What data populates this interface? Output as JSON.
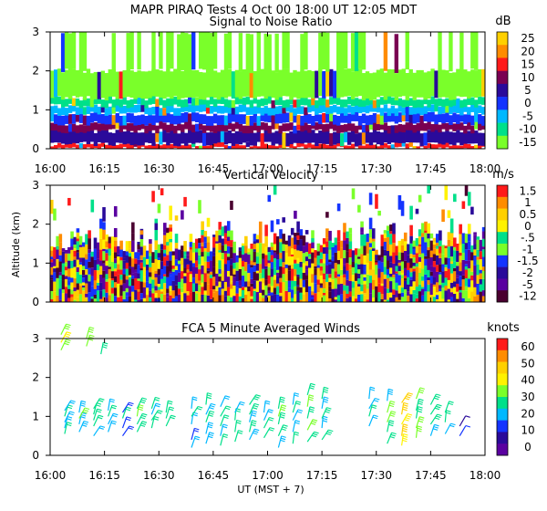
{
  "figure": {
    "title": "MAPR PIRAQ Tests   4 Oct 00   18:00 UT   12:05   MDT",
    "x_label": "UT  (MST + 7)",
    "y_label": "Altitude (km)"
  },
  "chart_data": [
    {
      "type": "heatmap",
      "title": "Signal to Noise Ratio",
      "x_ticks": [
        "16:00",
        "16:15",
        "16:30",
        "16:45",
        "17:00",
        "17:15",
        "17:30",
        "17:45",
        "18:00"
      ],
      "x_range_minutes": [
        0,
        120
      ],
      "y_ticks": [
        "0",
        "1",
        "2",
        "3"
      ],
      "ylim": [
        0,
        3
      ],
      "colorbar": {
        "unit": "dB",
        "labels": [
          "25",
          "20",
          "15",
          "10",
          "5",
          "0",
          "-5",
          "-10",
          "-15"
        ],
        "colors": [
          "#ffd000",
          "#ff8c00",
          "#ff1a1a",
          "#7a0052",
          "#2a0a9a",
          "#1434ff",
          "#00b8ff",
          "#00e08a",
          "#7aff2a"
        ]
      },
      "bands": [
        {
          "y0": 0.0,
          "y1": 0.12,
          "color": "#ff1a1a"
        },
        {
          "y0": 0.12,
          "y1": 0.45,
          "color": "#2a0a9a"
        },
        {
          "y0": 0.45,
          "y1": 0.65,
          "color": "#7a0052"
        },
        {
          "y0": 0.65,
          "y1": 0.9,
          "color": "#1434ff"
        },
        {
          "y0": 0.9,
          "y1": 1.1,
          "color": "#00b8ff"
        },
        {
          "y0": 1.1,
          "y1": 1.3,
          "color": "#00e08a"
        },
        {
          "y0": 1.3,
          "y1": 2.0,
          "color": "#7aff2a"
        },
        {
          "y0": 2.0,
          "y1": 3.0,
          "color": "#7aff2a",
          "sparse": true
        }
      ]
    },
    {
      "type": "heatmap",
      "title": "Vertical Velocity",
      "x_ticks": [
        "",
        "",
        "",
        "",
        "",
        "",
        "",
        "",
        ""
      ],
      "x_range_minutes": [
        0,
        120
      ],
      "y_ticks": [
        "0",
        "1",
        "2",
        "3"
      ],
      "ylim": [
        0,
        3
      ],
      "colorbar": {
        "unit": "m/s",
        "labels": [
          "1.5",
          "1",
          "0.5",
          "0",
          "-.5",
          "-1",
          "-1.5",
          "-2",
          "-5",
          "-12"
        ],
        "colors": [
          "#ff1a1a",
          "#ff8c00",
          "#ffd000",
          "#fff200",
          "#00e08a",
          "#7aff2a",
          "#1434ff",
          "#2a0a9a",
          "#5a00a0",
          "#4a0030"
        ]
      },
      "fill_top_km": 1.5,
      "scatter_top_km": 3.0
    },
    {
      "type": "scatter",
      "title": "FCA 5 Minute Averaged Winds",
      "x_ticks": [
        "16:00",
        "16:15",
        "16:30",
        "16:45",
        "17:00",
        "17:15",
        "17:30",
        "17:45",
        "18:00"
      ],
      "x_range_minutes": [
        0,
        120
      ],
      "y_ticks": [
        "0",
        "1",
        "2",
        "3"
      ],
      "ylim": [
        0,
        3
      ],
      "colorbar": {
        "unit": "knots",
        "labels": [
          "60",
          "50",
          "40",
          "30",
          "20",
          "10",
          "0"
        ],
        "colors": [
          "#ff1a1a",
          "#ff8c00",
          "#ffd000",
          "#fff200",
          "#7aff2a",
          "#00e08a",
          "#00b8ff",
          "#1434ff",
          "#2a0a9a",
          "#5a00a0"
        ]
      },
      "barb_groups": [
        {
          "t": 3,
          "alts": [
            2.7,
            2.9,
            3.1
          ],
          "speed": 32
        },
        {
          "t": 10,
          "alts": [
            2.8,
            3.0
          ],
          "speed": 30
        },
        {
          "t": 14,
          "alts": [
            2.6
          ],
          "speed": 30
        },
        {
          "t": 4,
          "alts": [
            0.55,
            0.7,
            0.85,
            1.0,
            1.15
          ],
          "speed": 22
        },
        {
          "t": 8,
          "alts": [
            0.6,
            0.8,
            0.95,
            1.1
          ],
          "speed": 25
        },
        {
          "t": 12,
          "alts": [
            0.5,
            0.75,
            0.9,
            1.05,
            1.2
          ],
          "speed": 24
        },
        {
          "t": 16,
          "alts": [
            0.6,
            0.8,
            1.0,
            1.15
          ],
          "speed": 22
        },
        {
          "t": 20,
          "alts": [
            0.5,
            0.7,
            0.95,
            1.1
          ],
          "speed": 20
        },
        {
          "t": 24,
          "alts": [
            0.6,
            0.8,
            1.0,
            1.2
          ],
          "speed": 26
        },
        {
          "t": 28,
          "alts": [
            0.7,
            0.9,
            1.05,
            1.2
          ],
          "speed": 24
        },
        {
          "t": 32,
          "alts": [
            0.75,
            0.95,
            1.1
          ],
          "speed": 23
        },
        {
          "t": 39,
          "alts": [
            0.2,
            0.4,
            0.8,
            1.0,
            1.2
          ],
          "speed": 22
        },
        {
          "t": 43,
          "alts": [
            0.3,
            0.55,
            0.85,
            1.05,
            1.3
          ],
          "speed": 25
        },
        {
          "t": 47,
          "alts": [
            0.25,
            0.5,
            0.75,
            1.0,
            1.25
          ],
          "speed": 24
        },
        {
          "t": 51,
          "alts": [
            0.35,
            0.6,
            0.9,
            1.1
          ],
          "speed": 22
        },
        {
          "t": 55,
          "alts": [
            0.4,
            0.6,
            0.85,
            1.05,
            1.3
          ],
          "speed": 25
        },
        {
          "t": 59,
          "alts": [
            0.45,
            0.7,
            0.9,
            1.1
          ],
          "speed": 24
        },
        {
          "t": 63,
          "alts": [
            0.2,
            0.5,
            0.8,
            1.0,
            1.2
          ],
          "speed": 26
        },
        {
          "t": 67,
          "alts": [
            0.3,
            0.6,
            0.9,
            1.1,
            1.3
          ],
          "speed": 24
        },
        {
          "t": 71,
          "alts": [
            0.35,
            0.65,
            0.95,
            1.25,
            1.55
          ],
          "speed": 27
        },
        {
          "t": 75,
          "alts": [
            0.4,
            0.7,
            0.95,
            1.2,
            1.45
          ],
          "speed": 25
        },
        {
          "t": 88,
          "alts": [
            0.75,
            1.0,
            1.2,
            1.45
          ],
          "speed": 24
        },
        {
          "t": 93,
          "alts": [
            0.3,
            0.6,
            0.85,
            1.1,
            1.4
          ],
          "speed": 28
        },
        {
          "t": 97,
          "alts": [
            0.25,
            0.5,
            0.8,
            1.05,
            1.35
          ],
          "speed": 42
        },
        {
          "t": 101,
          "alts": [
            0.45,
            0.7,
            0.95,
            1.15,
            1.45
          ],
          "speed": 30
        },
        {
          "t": 105,
          "alts": [
            0.5,
            0.8,
            1.05,
            1.3
          ],
          "speed": 26
        },
        {
          "t": 109,
          "alts": [
            0.55,
            0.85,
            1.1
          ],
          "speed": 24
        },
        {
          "t": 113,
          "alts": [
            0.5,
            0.75
          ],
          "speed": 12
        }
      ]
    }
  ]
}
